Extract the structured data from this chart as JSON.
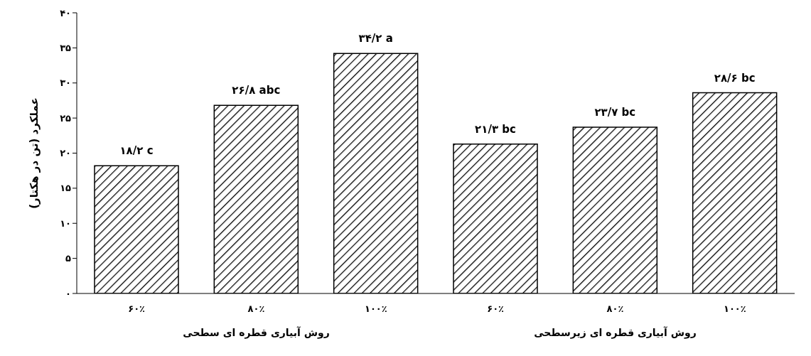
{
  "chart_data": {
    "type": "bar",
    "ylabel": "عملکرد (تن در هکتار)",
    "categories": [
      "۶۰٪",
      "۸۰٪",
      "۱۰۰٪",
      "۶۰٪",
      "۸۰٪",
      "۱۰۰٪"
    ],
    "values": [
      18.2,
      26.8,
      34.2,
      21.3,
      23.7,
      28.6
    ],
    "value_labels": [
      "۱۸/۲ c",
      "۲۶/۸ abc",
      "۳۴/۲ a",
      "۲۱/۳ bc",
      "۲۳/۷ bc",
      "۲۸/۶ bc"
    ],
    "color": "#000000",
    "ylim": [
      0,
      40
    ],
    "yticks": [
      {
        "value": 0,
        "label": "۰"
      },
      {
        "value": 5,
        "label": "۵"
      },
      {
        "value": 10,
        "label": "۱۰"
      },
      {
        "value": 15,
        "label": "۱۵"
      },
      {
        "value": 20,
        "label": "۲۰"
      },
      {
        "value": 25,
        "label": "۲۵"
      },
      {
        "value": 30,
        "label": "۳۰"
      },
      {
        "value": 35,
        "label": "۳۵"
      },
      {
        "value": 40,
        "label": "۴۰"
      }
    ],
    "annotations": [
      "روش آبیاری قطره ای سطحی",
      "روش آبیاری قطره ای زیرسطحی"
    ],
    "grid": false,
    "legend": false
  }
}
